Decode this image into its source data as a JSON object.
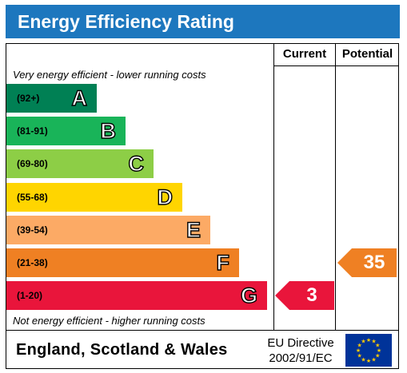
{
  "title": "Energy Efficiency Rating",
  "columns": {
    "current": "Current",
    "potential": "Potential"
  },
  "top_note": "Very energy efficient - lower running costs",
  "bottom_note": "Not energy efficient - higher running costs",
  "footer": {
    "country": "England, Scotland & Wales",
    "directive_line1": "EU Directive",
    "directive_line2": "2002/91/EC"
  },
  "colors": {
    "header": "#1d77be",
    "A": "#008054",
    "B": "#19b459",
    "C": "#8dce46",
    "D": "#ffd500",
    "E": "#fcaa65",
    "F": "#ef8023",
    "G": "#e9153b",
    "eu_flag": "#003399",
    "eu_stars": "#ffcc00"
  },
  "chart_data": {
    "type": "bar",
    "categories": [
      "A",
      "B",
      "C",
      "D",
      "E",
      "F",
      "G"
    ],
    "ranges": [
      "(92+)",
      "(81-91)",
      "(69-80)",
      "(55-68)",
      "(39-54)",
      "(21-38)",
      "(1-20)"
    ],
    "current": {
      "value": "3",
      "band": "G"
    },
    "potential": {
      "value": "35",
      "band": "F"
    }
  }
}
